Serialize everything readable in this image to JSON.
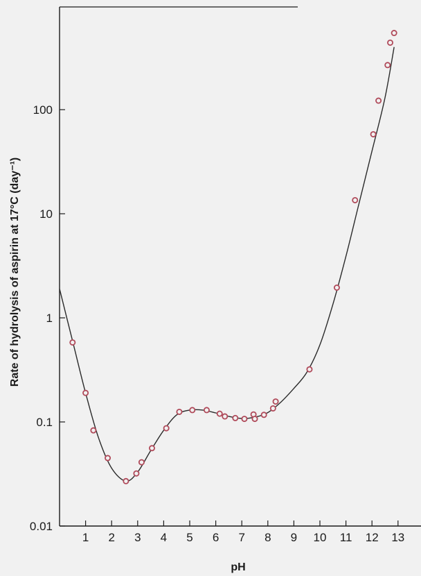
{
  "chart_data": {
    "type": "scatter",
    "xlabel": "pH",
    "ylabel": "Rate of hydrolysis of aspirin at 17°C (day⁻¹)",
    "xlim": [
      0,
      13.5
    ],
    "ylim": [
      0.01,
      1000
    ],
    "y_scale": "log",
    "grid": false,
    "legend": "none",
    "colors": {
      "marker": "#b04a5a",
      "curve": "#2a2a2a",
      "axis": "#1a1a1a",
      "background": "#f1f1f1"
    },
    "x_ticks": [
      {
        "value": 1,
        "label": "1"
      },
      {
        "value": 2,
        "label": "2"
      },
      {
        "value": 3,
        "label": "3"
      },
      {
        "value": 4,
        "label": "4"
      },
      {
        "value": 5,
        "label": "5"
      },
      {
        "value": 6,
        "label": "6"
      },
      {
        "value": 7,
        "label": "7"
      },
      {
        "value": 8,
        "label": "8"
      },
      {
        "value": 9,
        "label": "9"
      },
      {
        "value": 10,
        "label": "10"
      },
      {
        "value": 11,
        "label": "11"
      },
      {
        "value": 12,
        "label": "12"
      },
      {
        "value": 13,
        "label": "13"
      }
    ],
    "y_ticks": [
      {
        "value": 0.01,
        "label": "0.01"
      },
      {
        "value": 0.1,
        "label": "0.1"
      },
      {
        "value": 1,
        "label": "1"
      },
      {
        "value": 10,
        "label": "10"
      },
      {
        "value": 100,
        "label": "100"
      }
    ],
    "points": [
      {
        "x": 0.5,
        "y": 0.58
      },
      {
        "x": 1.0,
        "y": 0.19
      },
      {
        "x": 1.3,
        "y": 0.083
      },
      {
        "x": 1.85,
        "y": 0.045
      },
      {
        "x": 2.55,
        "y": 0.027
      },
      {
        "x": 2.95,
        "y": 0.032
      },
      {
        "x": 3.15,
        "y": 0.041
      },
      {
        "x": 3.55,
        "y": 0.056
      },
      {
        "x": 4.1,
        "y": 0.087
      },
      {
        "x": 4.6,
        "y": 0.125
      },
      {
        "x": 5.1,
        "y": 0.13
      },
      {
        "x": 5.65,
        "y": 0.13
      },
      {
        "x": 6.15,
        "y": 0.12
      },
      {
        "x": 6.35,
        "y": 0.113
      },
      {
        "x": 6.75,
        "y": 0.109
      },
      {
        "x": 7.1,
        "y": 0.107
      },
      {
        "x": 7.45,
        "y": 0.118
      },
      {
        "x": 7.5,
        "y": 0.107
      },
      {
        "x": 7.85,
        "y": 0.117
      },
      {
        "x": 8.2,
        "y": 0.135
      },
      {
        "x": 8.3,
        "y": 0.157
      },
      {
        "x": 9.6,
        "y": 0.32
      },
      {
        "x": 10.65,
        "y": 1.95
      },
      {
        "x": 11.35,
        "y": 13.5
      },
      {
        "x": 12.05,
        "y": 58
      },
      {
        "x": 12.25,
        "y": 122
      },
      {
        "x": 12.6,
        "y": 268
      },
      {
        "x": 12.7,
        "y": 440
      },
      {
        "x": 12.85,
        "y": 545
      }
    ],
    "fit_curve": [
      [
        0.0,
        1.9
      ],
      [
        0.5,
        0.6
      ],
      [
        1.0,
        0.19
      ],
      [
        1.5,
        0.07
      ],
      [
        2.0,
        0.036
      ],
      [
        2.55,
        0.027
      ],
      [
        3.0,
        0.033
      ],
      [
        3.5,
        0.053
      ],
      [
        4.0,
        0.083
      ],
      [
        4.5,
        0.117
      ],
      [
        5.0,
        0.13
      ],
      [
        5.5,
        0.13
      ],
      [
        6.0,
        0.122
      ],
      [
        6.5,
        0.113
      ],
      [
        7.0,
        0.108
      ],
      [
        7.5,
        0.111
      ],
      [
        8.0,
        0.123
      ],
      [
        8.5,
        0.155
      ],
      [
        9.0,
        0.21
      ],
      [
        9.5,
        0.3
      ],
      [
        10.0,
        0.55
      ],
      [
        10.5,
        1.35
      ],
      [
        11.0,
        3.9
      ],
      [
        11.5,
        12.5
      ],
      [
        12.0,
        40
      ],
      [
        12.5,
        130
      ],
      [
        12.85,
        400
      ]
    ]
  }
}
